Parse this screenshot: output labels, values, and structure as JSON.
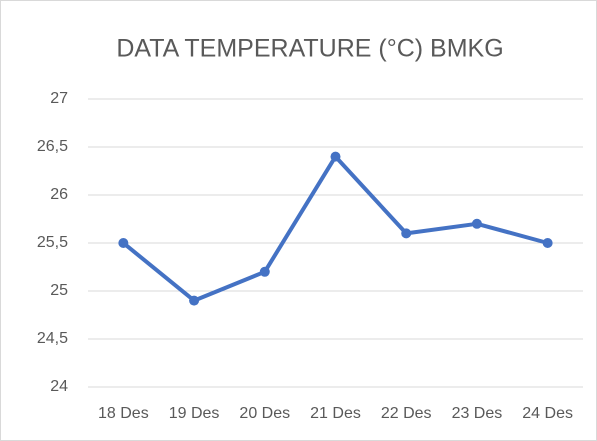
{
  "chart_data": {
    "type": "line",
    "title": "DATA TEMPERATURE (°C) BMKG",
    "categories": [
      "18 Des",
      "19 Des",
      "20 Des",
      "21 Des",
      "22 Des",
      "23 Des",
      "24 Des"
    ],
    "values": [
      25.5,
      24.9,
      25.2,
      26.4,
      25.6,
      25.7,
      25.5
    ],
    "color": "#4472c4",
    "ylim": [
      24,
      27
    ],
    "yticks": [
      24,
      {
        "value": 24.5,
        "label": "24,5"
      },
      25,
      {
        "value": 25.5,
        "label": "25,5"
      },
      26,
      {
        "value": 26.5,
        "label": "26,5"
      },
      27
    ],
    "grid": true
  }
}
